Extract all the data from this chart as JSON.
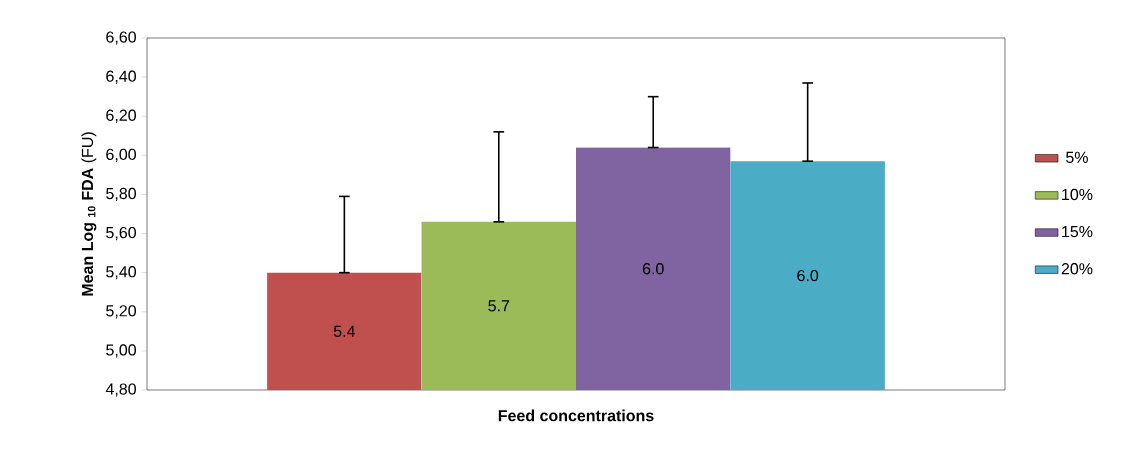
{
  "chart_data": {
    "type": "bar",
    "xlabel": "Feed concentrations",
    "ylabel": "**Mean Log $_{10}$ FDA** (FU)",
    "categories": [
      null
    ],
    "series": [
      {
        "name": "5%",
        "color": "#c0504d",
        "values": [
          5.4
        ],
        "errors": [
          [
            5.4,
            5.79
          ]
        ],
        "value_labels": [
          "5.4"
        ]
      },
      {
        "name": "10%",
        "color": "#9bbb59",
        "values": [
          5.66
        ],
        "errors": [
          [
            5.66,
            6.12
          ]
        ],
        "value_labels": [
          "5.7"
        ]
      },
      {
        "name": "15%",
        "color": "#8064a2",
        "values": [
          6.04
        ],
        "errors": [
          [
            6.04,
            6.3
          ]
        ],
        "value_labels": [
          "6.0"
        ]
      },
      {
        "name": "20%",
        "color": "#4bacc6",
        "values": [
          5.97
        ],
        "errors": [
          [
            5.97,
            6.37
          ]
        ],
        "value_labels": [
          "6.0"
        ]
      }
    ],
    "ylim": [
      4.8,
      6.6
    ],
    "yticks": [
      {
        "value": 4.8,
        "label": "4,80"
      },
      {
        "value": 5.0,
        "label": "5,00"
      },
      {
        "value": 5.2,
        "label": "5,20"
      },
      {
        "value": 5.4,
        "label": "5,40"
      },
      {
        "value": 5.6,
        "label": "5,60"
      },
      {
        "value": 5.8,
        "label": "5,80"
      },
      {
        "value": 6.0,
        "label": "6,00"
      },
      {
        "value": 6.2,
        "label": "6,20"
      },
      {
        "value": 6.4,
        "label": "6,40"
      },
      {
        "value": 6.6,
        "label": "6,60"
      }
    ],
    "legend": "right",
    "grid": false
  }
}
